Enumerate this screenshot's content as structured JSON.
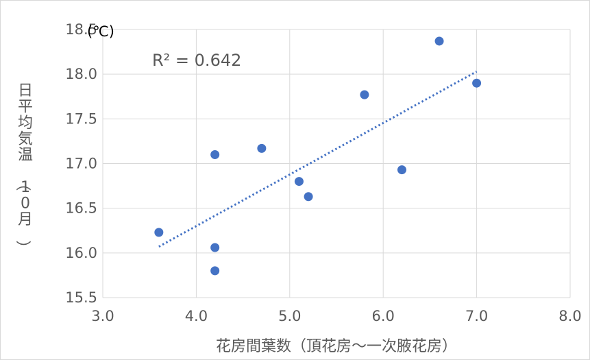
{
  "chart_data": {
    "type": "scatter",
    "xlabel": "花房間葉数（頂花房〜一次腋花房）",
    "ylabel": "日平均気温（10月）",
    "y_unit": "(℃)",
    "annotation": "R² = 0.642",
    "xlim": [
      3.0,
      8.0
    ],
    "ylim": [
      15.5,
      18.5
    ],
    "x_ticks": [
      "3.0",
      "4.0",
      "5.0",
      "6.0",
      "7.0",
      "8.0"
    ],
    "y_ticks": [
      "15.5",
      "16.0",
      "16.5",
      "17.0",
      "17.5",
      "18.0",
      "18.5"
    ],
    "grid": true,
    "legend": "none",
    "point_color": "#4472c4",
    "trendline": {
      "type": "linear",
      "style": "dotted",
      "x_range": [
        3.6,
        7.0
      ],
      "y_range": [
        16.07,
        18.03
      ]
    },
    "series": [
      {
        "points": [
          {
            "x": 3.6,
            "y": 16.23
          },
          {
            "x": 4.2,
            "y": 17.1
          },
          {
            "x": 4.2,
            "y": 16.06
          },
          {
            "x": 4.2,
            "y": 15.8
          },
          {
            "x": 4.7,
            "y": 17.17
          },
          {
            "x": 5.1,
            "y": 16.8
          },
          {
            "x": 5.2,
            "y": 16.63
          },
          {
            "x": 5.8,
            "y": 17.77
          },
          {
            "x": 6.2,
            "y": 16.93
          },
          {
            "x": 6.6,
            "y": 18.37
          },
          {
            "x": 7.0,
            "y": 17.9
          }
        ]
      }
    ]
  }
}
